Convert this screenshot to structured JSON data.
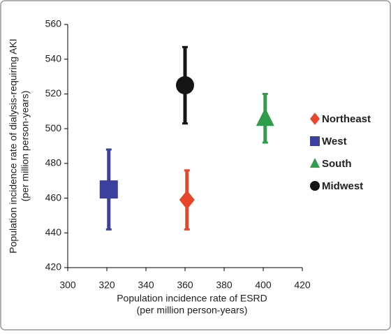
{
  "chart_data": {
    "type": "scatter",
    "xlabel": [
      "Population incidence rate of ESRD",
      "(per million person-years)"
    ],
    "ylabel": [
      "Population incidence rate of dialysis-requiring AKI",
      "(per million person-years)"
    ],
    "xlim": [
      300,
      420
    ],
    "xticks": [
      300,
      320,
      340,
      360,
      380,
      400,
      420
    ],
    "ylim": [
      420,
      560
    ],
    "yticks": [
      420,
      440,
      460,
      480,
      500,
      520,
      540,
      560
    ],
    "grid": false,
    "legend": "right",
    "series": [
      {
        "name": "Northeast",
        "color": "#e8452b",
        "marker": "diamond",
        "x": [
          361
        ],
        "y": [
          459
        ],
        "error": [
          17
        ]
      },
      {
        "name": "West",
        "color": "#3b3f9e",
        "marker": "square",
        "x": [
          321
        ],
        "y": [
          465
        ],
        "error": [
          23
        ]
      },
      {
        "name": "South",
        "color": "#2f9e4a",
        "marker": "triangle",
        "x": [
          401
        ],
        "y": [
          506
        ],
        "error": [
          14
        ]
      },
      {
        "name": "Midwest",
        "color": "#151515",
        "marker": "circle",
        "x": [
          360
        ],
        "y": [
          525
        ],
        "error": [
          22
        ]
      }
    ]
  }
}
